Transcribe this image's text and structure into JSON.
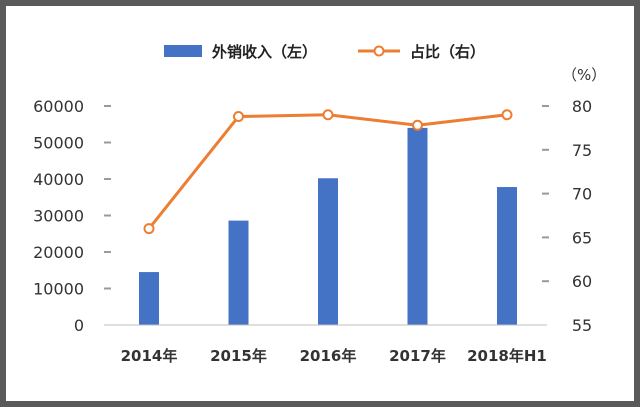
{
  "chart_data": {
    "type": "bar+line",
    "categories": [
      "2014年",
      "2015年",
      "2016年",
      "2017年",
      "2018年H1"
    ],
    "series": [
      {
        "name": "外销收入（左）",
        "type": "bar",
        "axis": "left",
        "color": "#4472C4",
        "values": [
          14500,
          28600,
          40200,
          54000,
          37800
        ]
      },
      {
        "name": "占比（右）",
        "type": "line",
        "axis": "right",
        "color": "#ED7D31",
        "values": [
          66.0,
          78.8,
          79.0,
          77.8,
          79.0
        ]
      }
    ],
    "y_left": {
      "ticks": [
        0,
        10000,
        20000,
        30000,
        40000,
        50000,
        60000
      ],
      "range": [
        0,
        60000
      ]
    },
    "y_right": {
      "ticks": [
        55,
        60,
        65,
        70,
        75,
        80
      ],
      "range": [
        55,
        80
      ],
      "unit": "（%）"
    },
    "legend": {
      "position": "top"
    },
    "grid": false
  }
}
